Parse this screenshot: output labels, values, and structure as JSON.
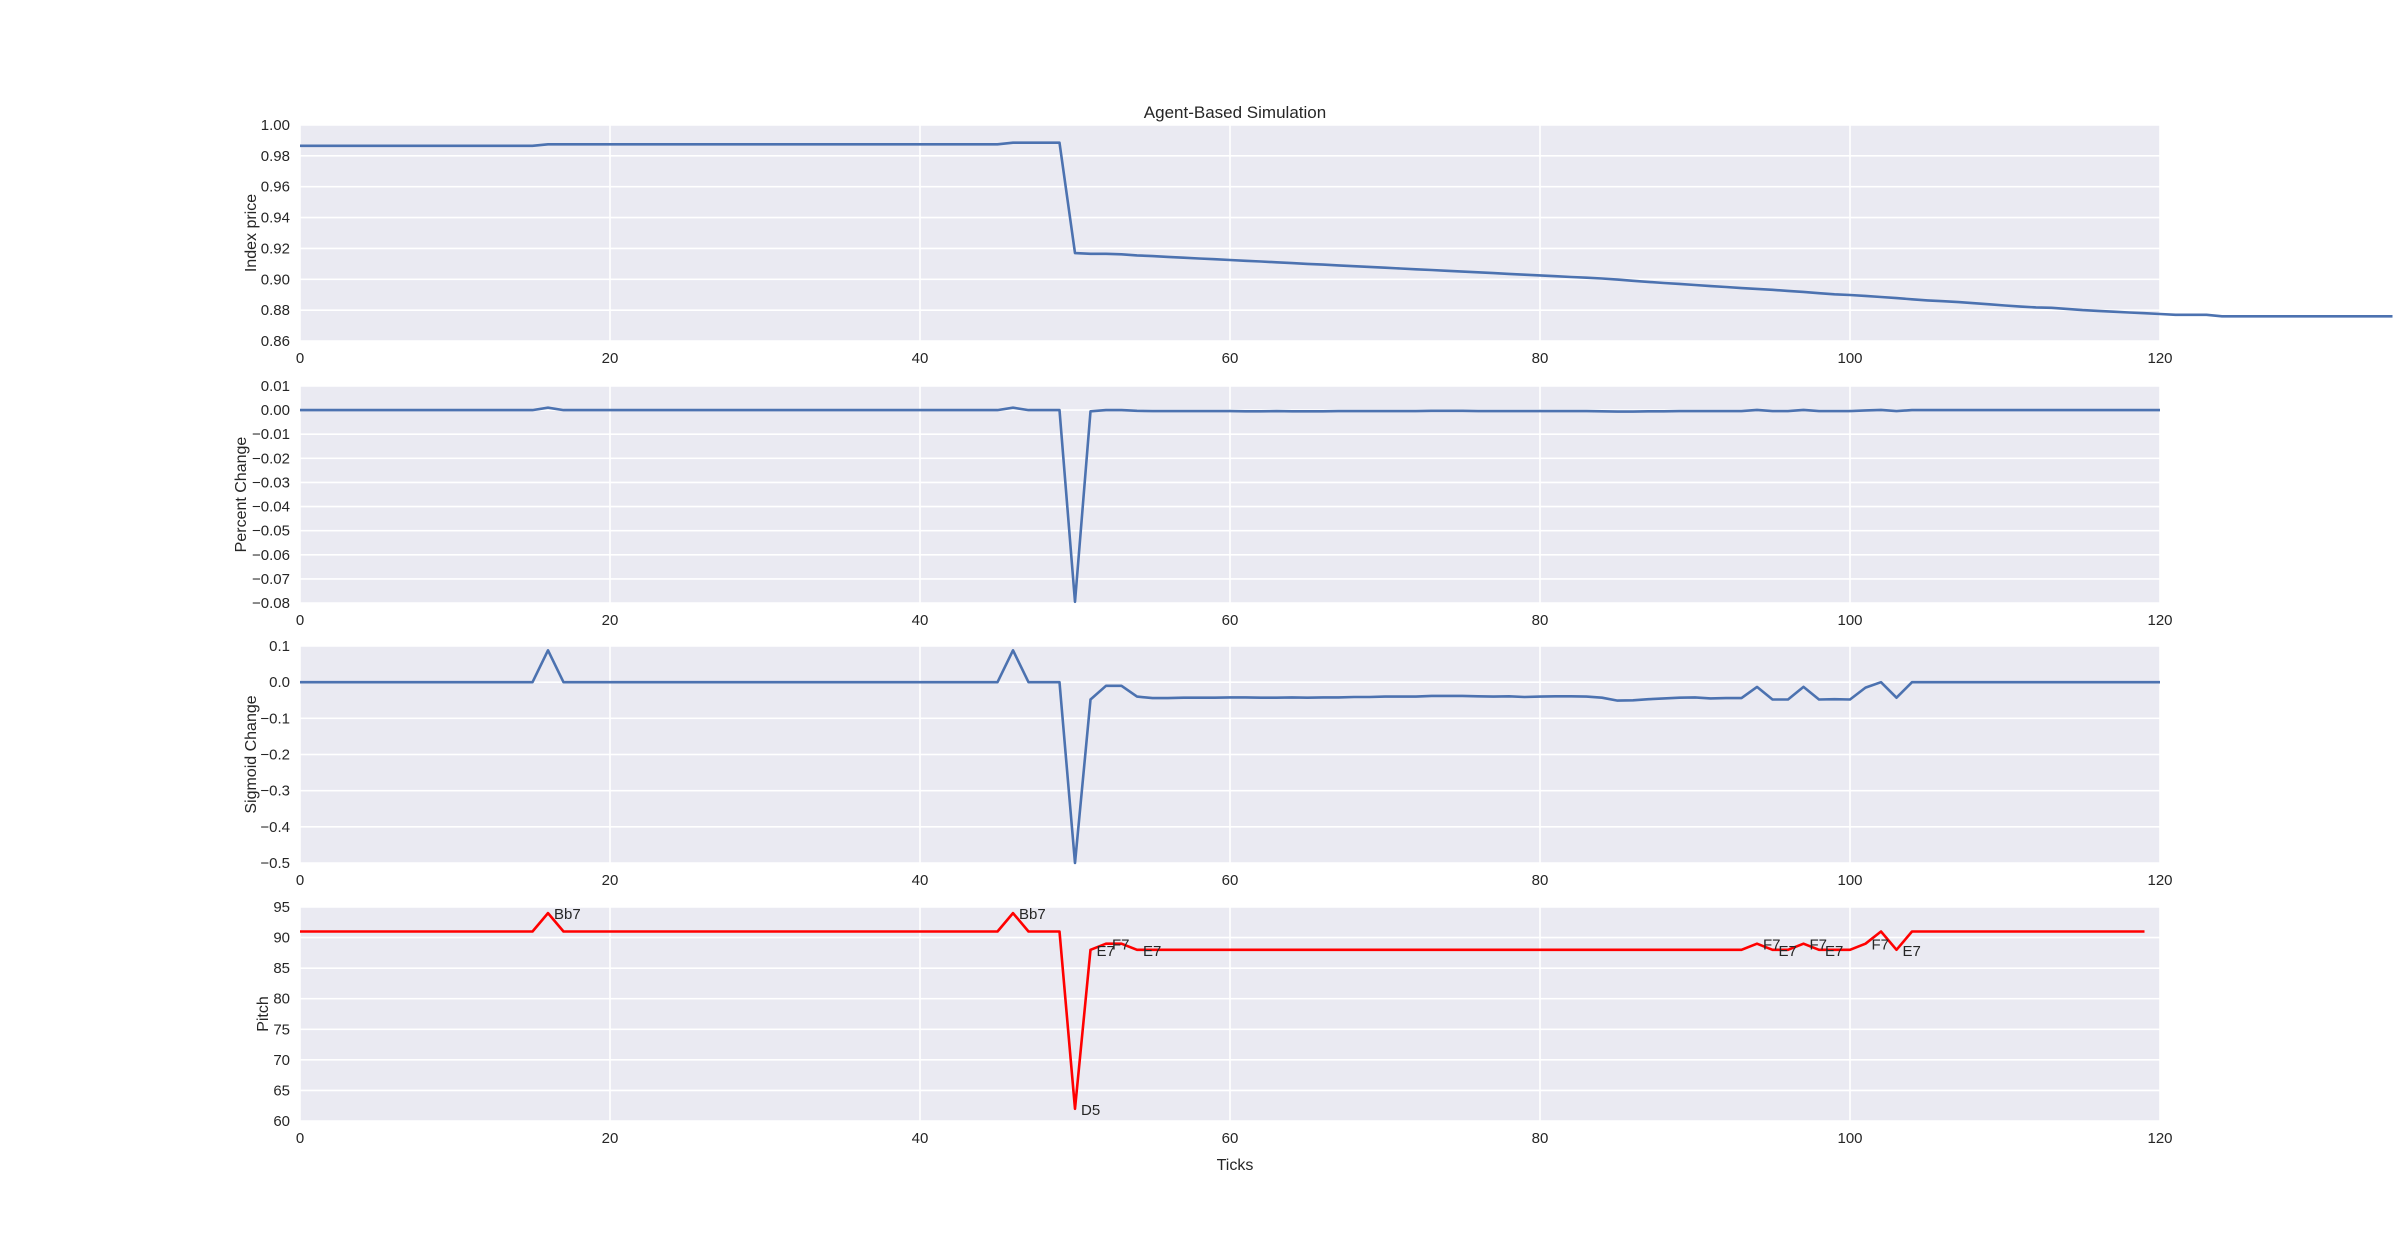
{
  "figure": {
    "title": "Agent-Based Simulation",
    "xlabel": "Ticks",
    "background": "#ffffff",
    "axes_facecolor": "#eaeaf2",
    "grid_color": "#ffffff",
    "text_color": "#262626"
  },
  "chart_data": [
    {
      "type": "line",
      "title": "Agent-Based Simulation",
      "xlabel": "",
      "ylabel": "Index price",
      "xlim": [
        0,
        120
      ],
      "ylim": [
        0.86,
        1.0
      ],
      "xticks": [
        0,
        20,
        40,
        60,
        80,
        100,
        120
      ],
      "yticks": [
        "0.86",
        "0.88",
        "0.90",
        "0.92",
        "0.94",
        "0.96",
        "0.98",
        "1.00"
      ],
      "grid": true,
      "color": "#4c72b0",
      "series": [
        {
          "name": "Index price",
          "x_start": 0,
          "values": [
            0.9865,
            0.9865,
            0.9865,
            0.9865,
            0.9865,
            0.9865,
            0.9865,
            0.9865,
            0.9865,
            0.9865,
            0.9865,
            0.9865,
            0.9865,
            0.9865,
            0.9865,
            0.9865,
            0.9875,
            0.9875,
            0.9875,
            0.9875,
            0.9875,
            0.9875,
            0.9875,
            0.9875,
            0.9875,
            0.9875,
            0.9875,
            0.9875,
            0.9875,
            0.9875,
            0.9875,
            0.9875,
            0.9875,
            0.9875,
            0.9875,
            0.9875,
            0.9875,
            0.9875,
            0.9875,
            0.9875,
            0.9875,
            0.9875,
            0.9875,
            0.9875,
            0.9875,
            0.9875,
            0.9885,
            0.9885,
            0.9885,
            0.9885,
            0.917,
            0.9165,
            0.9165,
            0.9162,
            0.9155,
            0.915,
            0.9145,
            0.914,
            0.9135,
            0.913,
            0.9125,
            0.912,
            0.9115,
            0.911,
            0.9105,
            0.91,
            0.9095,
            0.909,
            0.9085,
            0.908,
            0.9075,
            0.907,
            0.9065,
            0.906,
            0.9055,
            0.905,
            0.9045,
            0.904,
            0.9035,
            0.903,
            0.9025,
            0.902,
            0.9015,
            0.901,
            0.9005,
            0.8998,
            0.899,
            0.8983,
            0.8976,
            0.897,
            0.8963,
            0.8956,
            0.895,
            0.8943,
            0.8938,
            0.8932,
            0.8925,
            0.8918,
            0.891,
            0.8903,
            0.8898,
            0.8892,
            0.8885,
            0.8878,
            0.887,
            0.8863,
            0.8858,
            0.8852,
            0.8845,
            0.8838,
            0.883,
            0.8823,
            0.8818,
            0.8815,
            0.8808,
            0.88,
            0.8795,
            0.879,
            0.8785,
            0.878,
            0.8775,
            0.877,
            0.877,
            0.877,
            0.876,
            0.876,
            0.876,
            0.876,
            0.876,
            0.876,
            0.876,
            0.876,
            0.876,
            0.876,
            0.876,
            0.876
          ]
        }
      ]
    },
    {
      "type": "line",
      "ylabel": "Percent Change",
      "xlim": [
        0,
        120
      ],
      "ylim": [
        -0.08,
        0.01
      ],
      "xticks": [
        0,
        20,
        40,
        60,
        80,
        100,
        120
      ],
      "yticks": [
        "−0.08",
        "−0.07",
        "−0.06",
        "−0.05",
        "−0.04",
        "−0.03",
        "−0.02",
        "−0.01",
        "0.00",
        "0.01"
      ],
      "grid": true,
      "color": "#4c72b0",
      "series": [
        {
          "name": "Percent Change",
          "x_start": 0,
          "values": [
            0,
            0,
            0,
            0,
            0,
            0,
            0,
            0,
            0,
            0,
            0,
            0,
            0,
            0,
            0,
            0,
            0.001,
            0,
            0,
            0,
            0,
            0,
            0,
            0,
            0,
            0,
            0,
            0,
            0,
            0,
            0,
            0,
            0,
            0,
            0,
            0,
            0,
            0,
            0,
            0,
            0,
            0,
            0,
            0,
            0,
            0,
            0.001,
            0,
            0,
            0,
            -0.0795,
            -0.0005,
            0,
            0,
            -0.0003,
            -0.0004,
            -0.0004,
            -0.0004,
            -0.0004,
            -0.0004,
            -0.0004,
            -0.0005,
            -0.0005,
            -0.0004,
            -0.0005,
            -0.0005,
            -0.0005,
            -0.0004,
            -0.0004,
            -0.0004,
            -0.0004,
            -0.0004,
            -0.0004,
            -0.0003,
            -0.0003,
            -0.0003,
            -0.0004,
            -0.0004,
            -0.0004,
            -0.0004,
            -0.0004,
            -0.0004,
            -0.0004,
            -0.0004,
            -0.0005,
            -0.0006,
            -0.0006,
            -0.0005,
            -0.0005,
            -0.0004,
            -0.0004,
            -0.0004,
            -0.0004,
            -0.0004,
            0.0001,
            -0.0004,
            -0.0004,
            0.0001,
            -0.0004,
            -0.0004,
            -0.0004,
            -0.0001,
            0.0001,
            -0.0004,
            0,
            0,
            0,
            0,
            0,
            0,
            0,
            0,
            0,
            0,
            0,
            0,
            0,
            0,
            0,
            0,
            0
          ]
        }
      ]
    },
    {
      "type": "line",
      "ylabel": "Sigmoid Change",
      "xlim": [
        0,
        120
      ],
      "ylim": [
        -0.5,
        0.1
      ],
      "xticks": [
        0,
        20,
        40,
        60,
        80,
        100,
        120
      ],
      "yticks": [
        "−0.5",
        "−0.4",
        "−0.3",
        "−0.2",
        "−0.1",
        "0.0",
        "0.1"
      ],
      "grid": true,
      "color": "#4c72b0",
      "series": [
        {
          "name": "Sigmoid Change",
          "x_start": 0,
          "values": [
            0,
            0,
            0,
            0,
            0,
            0,
            0,
            0,
            0,
            0,
            0,
            0,
            0,
            0,
            0,
            0,
            0.088,
            0,
            0,
            0,
            0,
            0,
            0,
            0,
            0,
            0,
            0,
            0,
            0,
            0,
            0,
            0,
            0,
            0,
            0,
            0,
            0,
            0,
            0,
            0,
            0,
            0,
            0,
            0,
            0,
            0,
            0.088,
            0,
            0,
            0,
            -0.5,
            -0.048,
            -0.01,
            -0.01,
            -0.04,
            -0.044,
            -0.044,
            -0.043,
            -0.043,
            -0.043,
            -0.042,
            -0.042,
            -0.043,
            -0.043,
            -0.042,
            -0.043,
            -0.042,
            -0.042,
            -0.041,
            -0.041,
            -0.04,
            -0.04,
            -0.04,
            -0.038,
            -0.038,
            -0.038,
            -0.039,
            -0.04,
            -0.039,
            -0.041,
            -0.04,
            -0.039,
            -0.039,
            -0.04,
            -0.043,
            -0.051,
            -0.05,
            -0.047,
            -0.045,
            -0.043,
            -0.042,
            -0.045,
            -0.044,
            -0.044,
            -0.013,
            -0.048,
            -0.048,
            -0.013,
            -0.048,
            -0.047,
            -0.048,
            -0.015,
            0,
            -0.043,
            0,
            0,
            0,
            0,
            0,
            0,
            0,
            0,
            0,
            0,
            0,
            0,
            0,
            0,
            0,
            0,
            0
          ]
        }
      ]
    },
    {
      "type": "line",
      "ylabel": "Pitch",
      "xlabel": "Ticks",
      "xlim": [
        0,
        120
      ],
      "ylim": [
        60,
        95
      ],
      "xticks": [
        0,
        20,
        40,
        60,
        80,
        100,
        120
      ],
      "yticks": [
        "60",
        "65",
        "70",
        "75",
        "80",
        "85",
        "90",
        "95"
      ],
      "grid": true,
      "color": "#ff0000",
      "series": [
        {
          "name": "Pitch",
          "x_start": 0,
          "values": [
            91,
            91,
            91,
            91,
            91,
            91,
            91,
            91,
            91,
            91,
            91,
            91,
            91,
            91,
            91,
            91,
            94,
            91,
            91,
            91,
            91,
            91,
            91,
            91,
            91,
            91,
            91,
            91,
            91,
            91,
            91,
            91,
            91,
            91,
            91,
            91,
            91,
            91,
            91,
            91,
            91,
            91,
            91,
            91,
            91,
            91,
            94,
            91,
            91,
            91,
            62,
            88,
            89,
            89,
            88,
            88,
            88,
            88,
            88,
            88,
            88,
            88,
            88,
            88,
            88,
            88,
            88,
            88,
            88,
            88,
            88,
            88,
            88,
            88,
            88,
            88,
            88,
            88,
            88,
            88,
            88,
            88,
            88,
            88,
            88,
            88,
            88,
            88,
            88,
            88,
            88,
            88,
            88,
            88,
            89,
            88,
            88,
            89,
            88,
            88,
            88,
            89,
            91,
            88,
            91,
            91,
            91,
            91,
            91,
            91,
            91,
            91,
            91,
            91,
            91,
            91,
            91,
            91,
            91,
            91
          ]
        }
      ],
      "annotations": [
        {
          "text": "Bb7",
          "x": 16,
          "y": 94
        },
        {
          "text": "Bb7",
          "x": 46,
          "y": 94
        },
        {
          "text": "D5",
          "x": 50,
          "y": 62
        },
        {
          "text": "E7",
          "x": 51,
          "y": 88
        },
        {
          "text": "F7",
          "x": 52,
          "y": 89
        },
        {
          "text": "E7",
          "x": 54,
          "y": 88
        },
        {
          "text": "F7",
          "x": 94,
          "y": 89
        },
        {
          "text": "E7",
          "x": 95,
          "y": 88
        },
        {
          "text": "F7",
          "x": 97,
          "y": 89
        },
        {
          "text": "E7",
          "x": 98,
          "y": 88
        },
        {
          "text": "F7",
          "x": 101,
          "y": 89
        },
        {
          "text": "E7",
          "x": 103,
          "y": 88
        }
      ]
    }
  ]
}
